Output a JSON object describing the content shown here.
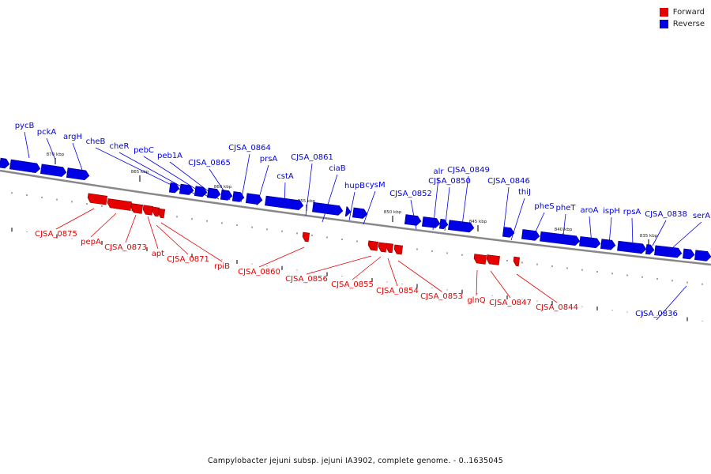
{
  "legend": [
    {
      "label": "Forward",
      "color": "#e60000"
    },
    {
      "label": "Reverse",
      "color": "#0000e6"
    }
  ],
  "colors": {
    "forward": "#e60000",
    "reverse": "#0000e6",
    "backbone": "#888888"
  },
  "scale_labels": [
    "870 kbp",
    "865 kbp",
    "860 kbp",
    "855 kbp",
    "850 kbp",
    "845 kbp",
    "840 kbp",
    "835 kbp"
  ],
  "genes": {
    "reverse": [
      "pycB",
      "pckA",
      "argH",
      "cheB",
      "cheR",
      "pebC",
      "peb1A",
      "CJSA_0865",
      "CJSA_0864",
      "prsA",
      "cstA",
      "CJSA_0861",
      "ciaB",
      "hupB",
      "cysM",
      "CJSA_0852",
      "alr",
      "CJSA_0850",
      "CJSA_0849",
      "CJSA_0846",
      "thiJ",
      "pheS",
      "pheT",
      "aroA",
      "ispH",
      "rpsA",
      "CJSA_0838",
      "serA",
      "CJSA_0836"
    ],
    "forward": [
      "CJSA_0875",
      "pepA",
      "CJSA_0873",
      "apt",
      "CJSA_0871",
      "rpiB",
      "CJSA_0860",
      "CJSA_0856",
      "CJSA_0855",
      "CJSA_0854",
      "CJSA_0853",
      "glnQ",
      "CJSA_0847",
      "CJSA_0844"
    ]
  },
  "caption": "Campylobacter jejuni subsp. jejuni IA3902, complete genome. - 0..1635045"
}
